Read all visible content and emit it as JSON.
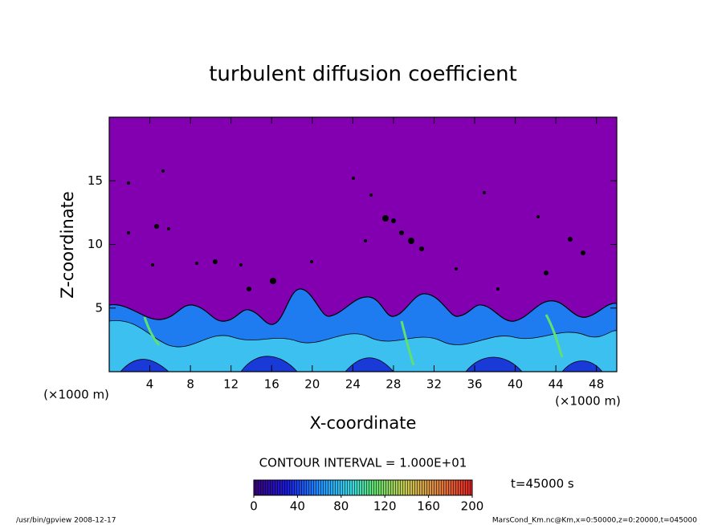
{
  "chart_data": {
    "type": "contour",
    "title": "turbulent diffusion coefficient",
    "x_label": "X-coordinate",
    "y_label": "Z-coordinate",
    "x_unit": "(×1000 m)",
    "y_unit": "(×1000 m)",
    "xlim": [
      0,
      50
    ],
    "xticks": [
      4,
      8,
      12,
      16,
      20,
      24,
      28,
      32,
      36,
      40,
      44,
      48
    ],
    "ylim": [
      0,
      20
    ],
    "yticks": [
      5,
      10,
      15
    ],
    "contour_interval": "CONTOUR INTERVAL = 1.000E+01",
    "time_label": "t=45000 s",
    "colorbar": {
      "clim": [
        0,
        200
      ],
      "ticks": [
        0,
        40,
        80,
        120,
        160,
        200
      ]
    },
    "footer_left": "/usr/bin/gpview  2008-12-17",
    "footer_right": "MarsCond_Km.nc@Km,x=0:50000,z=0:20000,t=045000"
  }
}
